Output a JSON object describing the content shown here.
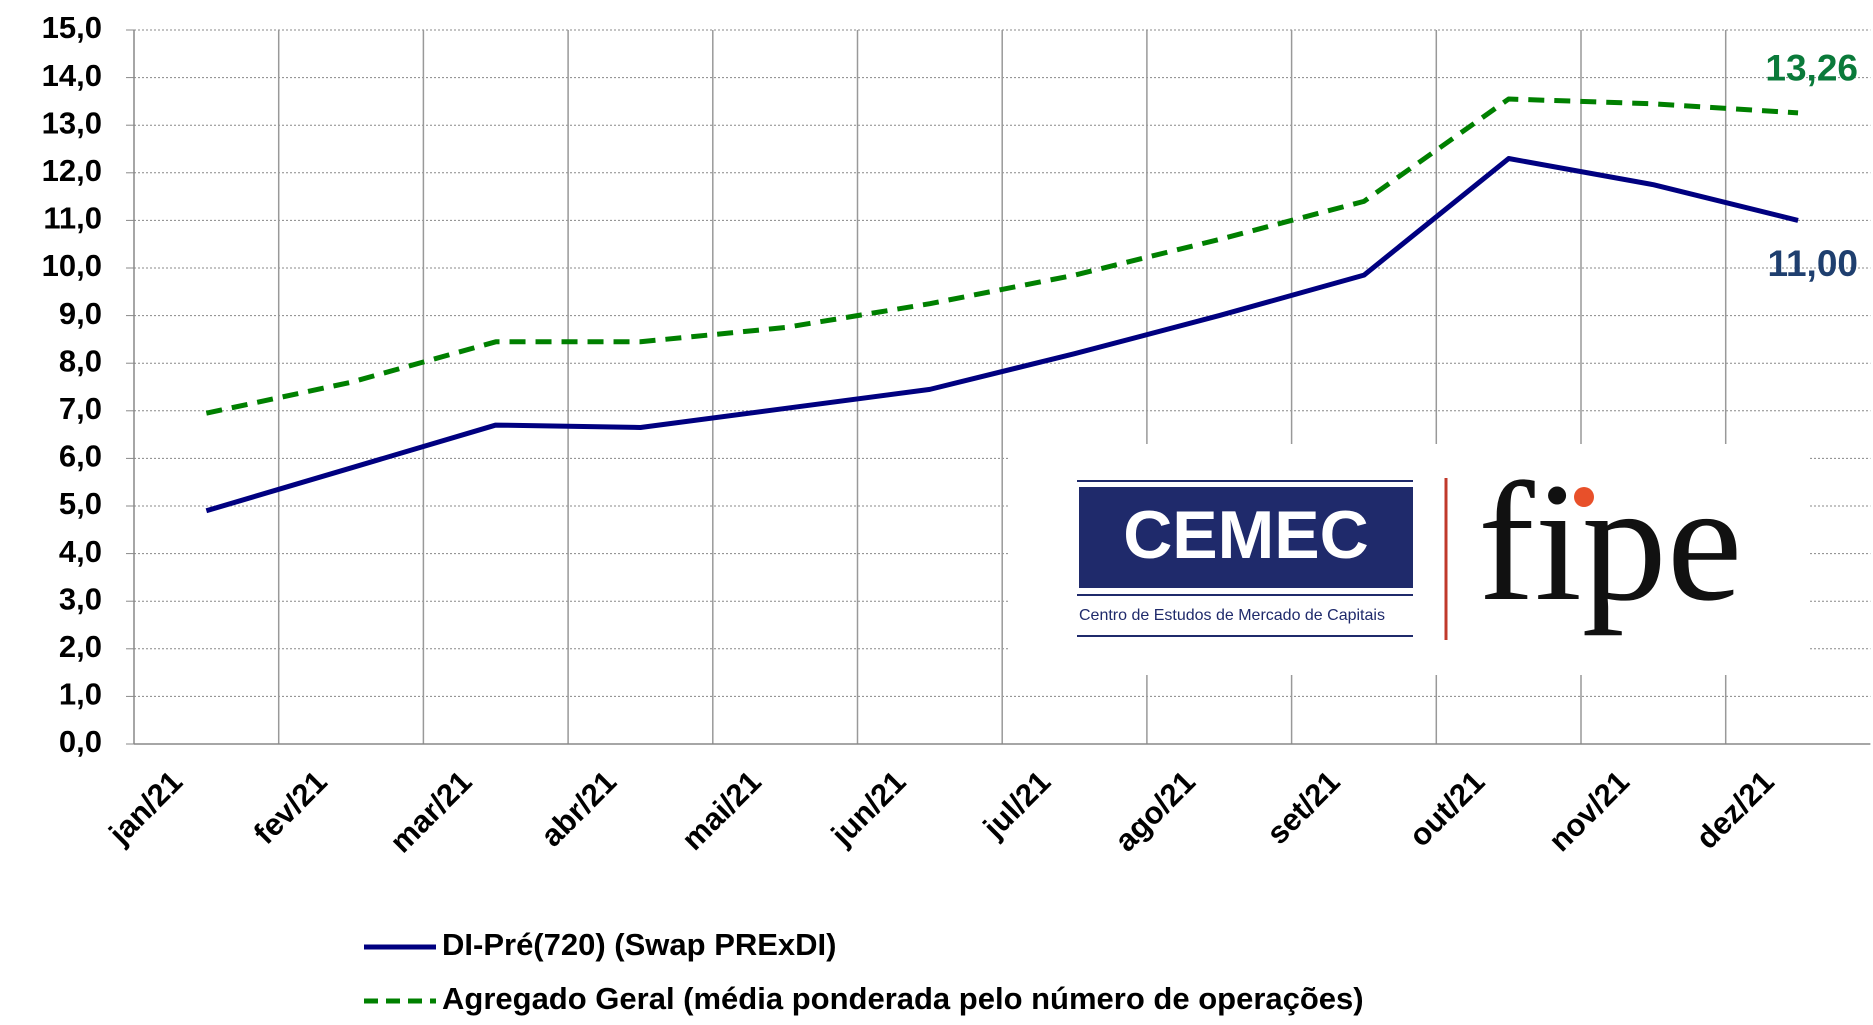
{
  "chart_data": {
    "type": "line",
    "categories": [
      "jan/21",
      "fev/21",
      "mar/21",
      "abr/21",
      "mai/21",
      "jun/21",
      "jul/21",
      "ago/21",
      "set/21",
      "out/21",
      "nov/21",
      "dez/21"
    ],
    "series": [
      {
        "name": "DI-Pré(720) (Swap PRExDI)",
        "color": "#000080",
        "dash": false,
        "values": [
          4.9,
          5.8,
          6.7,
          6.65,
          7.05,
          7.45,
          8.2,
          9.0,
          9.85,
          12.3,
          11.75,
          11.0
        ],
        "value_labels": [
          null,
          null,
          null,
          null,
          null,
          null,
          null,
          null,
          null,
          null,
          null,
          "11,00"
        ],
        "label_color": "#1f3f6f"
      },
      {
        "name": "Agregado Geral (média ponderada pelo número de operações)",
        "color": "#008000",
        "dash": true,
        "values": [
          6.95,
          7.6,
          8.45,
          8.45,
          8.75,
          9.25,
          9.85,
          10.6,
          11.4,
          13.55,
          13.45,
          13.26
        ],
        "value_labels": [
          null,
          null,
          null,
          null,
          null,
          null,
          null,
          null,
          null,
          null,
          null,
          "13,26"
        ],
        "label_color": "#0a7a3a"
      }
    ],
    "ylim": [
      0,
      15
    ],
    "yticks": [
      {
        "value": 0,
        "label": "0,0"
      },
      {
        "value": 1,
        "label": "1,0"
      },
      {
        "value": 2,
        "label": "2,0"
      },
      {
        "value": 3,
        "label": "3,0"
      },
      {
        "value": 4,
        "label": "4,0"
      },
      {
        "value": 5,
        "label": "5,0"
      },
      {
        "value": 6,
        "label": "6,0"
      },
      {
        "value": 7,
        "label": "7,0"
      },
      {
        "value": 8,
        "label": "8,0"
      },
      {
        "value": 9,
        "label": "9,0"
      },
      {
        "value": 10,
        "label": "10,0"
      },
      {
        "value": 11,
        "label": "11,0"
      },
      {
        "value": 12,
        "label": "12,0"
      },
      {
        "value": 13,
        "label": "13,0"
      },
      {
        "value": 14,
        "label": "14,0"
      },
      {
        "value": 15,
        "label": "15,0"
      }
    ],
    "grid": true,
    "legend": "bottom"
  },
  "logo": {
    "left": "CEMEC",
    "left_caption": "Centro de Estudos de Mercado de Capitais",
    "right": "fipe"
  }
}
